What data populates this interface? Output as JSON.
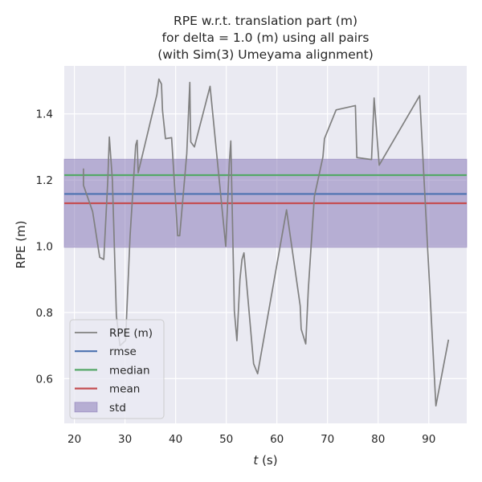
{
  "chart_data": {
    "type": "line",
    "title": [
      "RPE w.r.t. translation part (m)",
      "for delta = 1.0 (m) using all pairs",
      "(with Sim(3) Umeyama alignment)"
    ],
    "xlabel_italic": "t",
    "xlabel_unit": " (s)",
    "ylabel": "RPE (m)",
    "xlim": [
      18.0,
      97.5
    ],
    "ylim": [
      0.465,
      1.545
    ],
    "xticks": [
      20,
      30,
      40,
      50,
      60,
      70,
      80,
      90
    ],
    "yticks": [
      0.6,
      0.8,
      1.0,
      1.2,
      1.4
    ],
    "ytick_labels": [
      "0.6",
      "0.8",
      "1.0",
      "1.2",
      "1.4"
    ],
    "grid": true,
    "legend_position": "lower-left",
    "series": [
      {
        "name": "RPE (m)",
        "color": "#808080",
        "x": [
          21.8,
          21.8,
          23.6,
          25.0,
          25.8,
          26.6,
          26.9,
          27.5,
          28.3,
          29.0,
          30.1,
          31.0,
          32.1,
          32.4,
          32.6,
          36.3,
          36.7,
          37.2,
          37.4,
          38.0,
          39.2,
          40.4,
          40.8,
          42.2,
          42.8,
          42.9,
          43.0,
          43.7,
          46.8,
          49.9,
          50.6,
          50.9,
          51.6,
          52.1,
          52.7,
          53.1,
          53.5,
          55.4,
          56.2,
          61.9,
          64.6,
          64.8,
          65.7,
          66.2,
          67.4,
          69.1,
          69.4,
          71.7,
          75.5,
          75.8,
          78.7,
          79.2,
          80.2,
          88.2,
          91.4,
          93.9
        ],
        "y": [
          1.235,
          1.184,
          1.105,
          0.967,
          0.96,
          1.2,
          1.33,
          1.2,
          0.79,
          0.7,
          0.715,
          1.03,
          1.305,
          1.32,
          1.222,
          1.458,
          1.505,
          1.49,
          1.41,
          1.325,
          1.328,
          1.032,
          1.032,
          1.28,
          1.495,
          1.38,
          1.315,
          1.3,
          1.483,
          1.0,
          1.25,
          1.318,
          0.805,
          0.715,
          0.9,
          0.96,
          0.98,
          0.645,
          0.615,
          1.11,
          0.82,
          0.75,
          0.705,
          0.87,
          1.15,
          1.27,
          1.325,
          1.412,
          1.425,
          1.268,
          1.262,
          1.448,
          1.245,
          1.455,
          0.518,
          0.718
        ]
      }
    ],
    "reference_lines": [
      {
        "name": "rmse",
        "value": 1.158,
        "color": "#4c72b0"
      },
      {
        "name": "median",
        "value": 1.215,
        "color": "#55a868"
      },
      {
        "name": "mean",
        "value": 1.13,
        "color": "#c44e52"
      }
    ],
    "std_band": {
      "name": "std",
      "low": 0.997,
      "high": 1.263,
      "color": "#8172b3"
    },
    "legend_entries": [
      "RPE (m)",
      "rmse",
      "median",
      "mean",
      "std"
    ],
    "colors": {
      "background": "#eaeaf2",
      "grid": "#ffffff",
      "text": "#262626"
    }
  }
}
